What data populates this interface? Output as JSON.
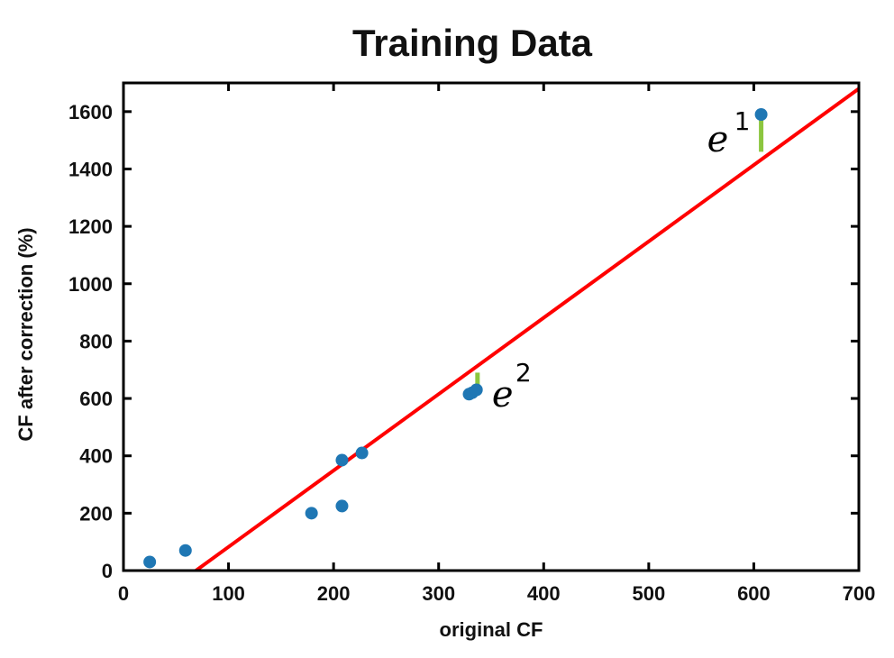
{
  "chart_data": {
    "type": "scatter",
    "title": "Training Data",
    "xlabel": "original CF",
    "ylabel": "CF after correction (%)",
    "xlim": [
      0,
      700
    ],
    "ylim": [
      0,
      1700
    ],
    "xticks": [
      0,
      100,
      200,
      300,
      400,
      500,
      600,
      700
    ],
    "yticks": [
      0,
      200,
      400,
      600,
      800,
      1000,
      1200,
      1400,
      1600
    ],
    "grid": false,
    "legend": "none",
    "series": [
      {
        "kind": "points",
        "color": "#1f77b4",
        "points": [
          {
            "x": 25,
            "y": 30
          },
          {
            "x": 59,
            "y": 70
          },
          {
            "x": 179,
            "y": 200
          },
          {
            "x": 208,
            "y": 225
          },
          {
            "x": 208,
            "y": 385
          },
          {
            "x": 227,
            "y": 410
          },
          {
            "x": 329,
            "y": 615
          },
          {
            "x": 332,
            "y": 620
          },
          {
            "x": 336,
            "y": 630
          },
          {
            "x": 607,
            "y": 1590
          }
        ]
      },
      {
        "kind": "fit-line",
        "color": "#ff0000",
        "points": [
          {
            "x": 69,
            "y": 0
          },
          {
            "x": 700,
            "y": 1680
          }
        ]
      }
    ],
    "residuals": [
      {
        "label": "e",
        "sup": "1",
        "x": 607,
        "y_from": 1460,
        "y_to": 1585,
        "color": "#8cc63f"
      },
      {
        "label": "e",
        "sup": "2",
        "x": 337,
        "y_from": 635,
        "y_to": 690,
        "color": "#8cc63f"
      }
    ]
  }
}
